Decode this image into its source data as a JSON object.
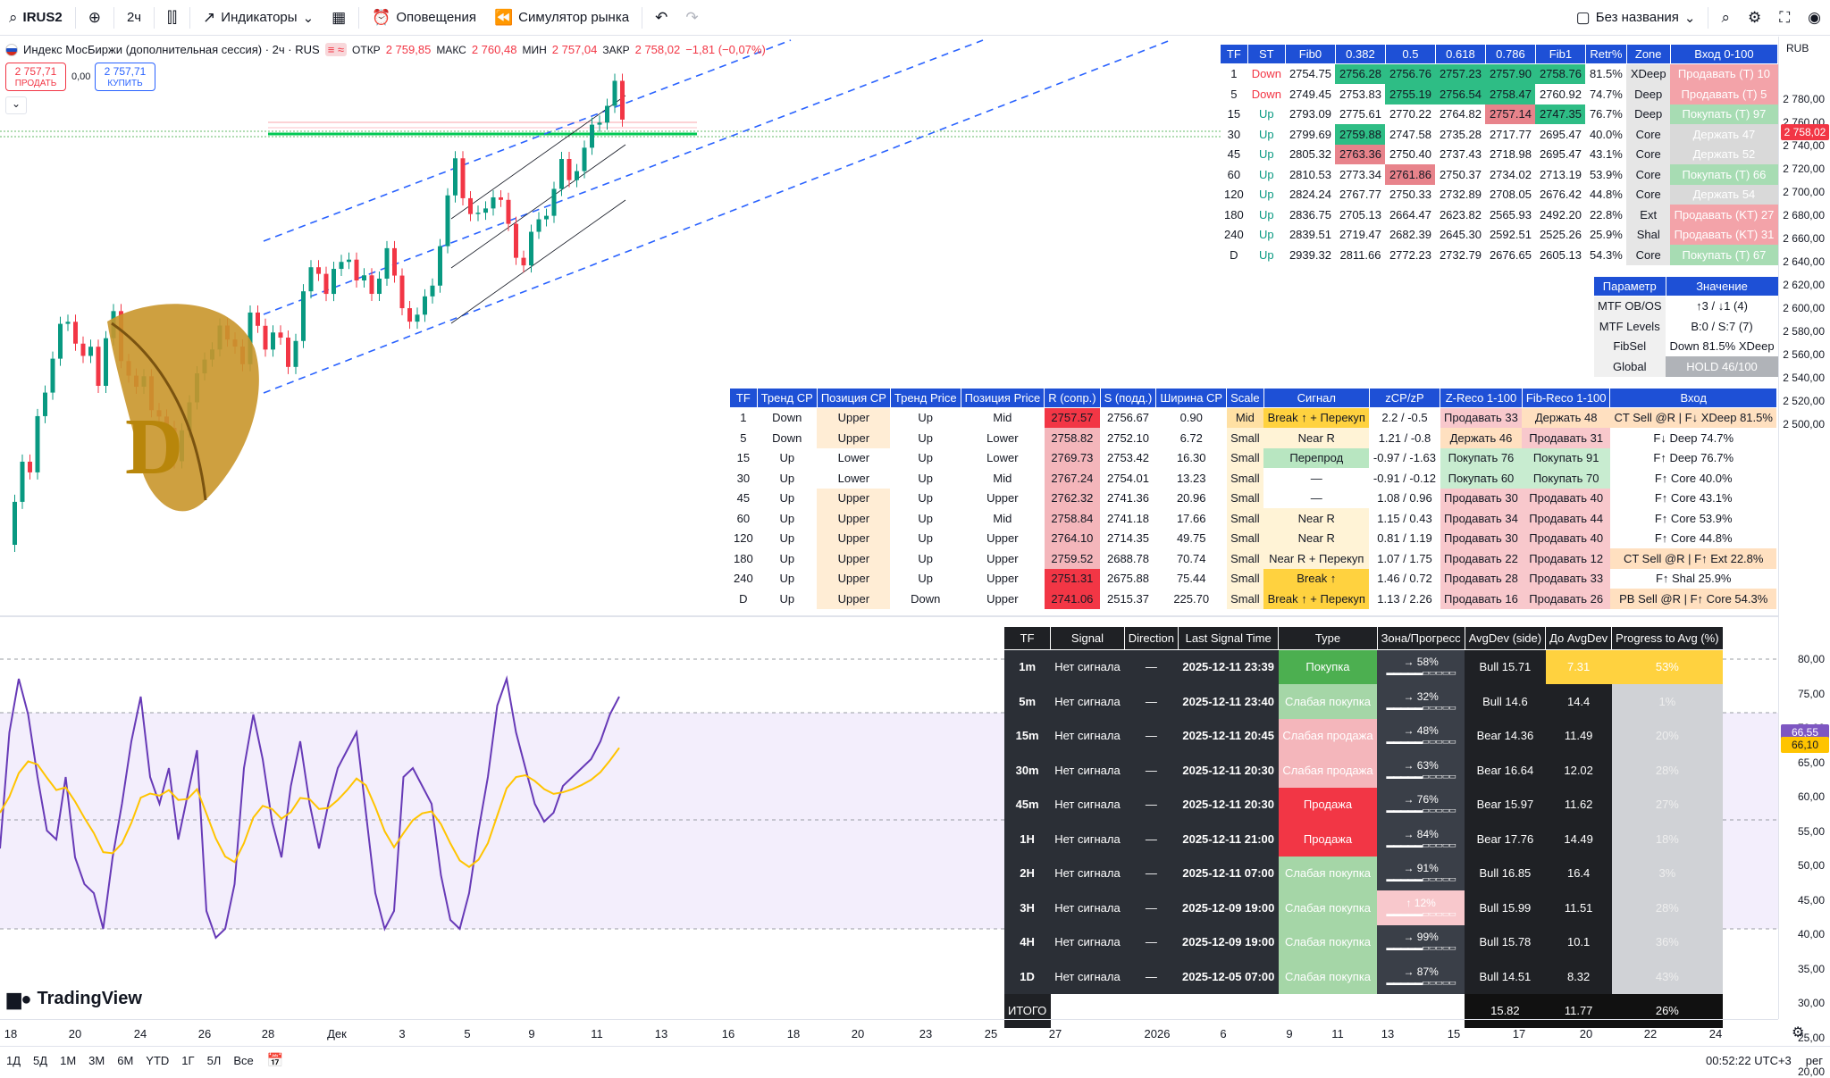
{
  "toolbar": {
    "symbol": "IRUS2",
    "interval": "2ч",
    "indicators": "Индикаторы",
    "alerts": "Оповещения",
    "replay": "Симулятор рынка",
    "layout_name": "Без названия"
  },
  "legend": {
    "title": "Индекс МосБиржи (дополнительная сессия) · 2ч · RUS",
    "o_label": "ОТКР",
    "o": "2 759,85",
    "h_label": "МАКС",
    "h": "2 760,48",
    "l_label": "МИН",
    "l": "2 757,04",
    "c_label": "ЗАКР",
    "c": "2 758,02",
    "chg": "−1,81 (−0,07%)",
    "sell_price": "2 757,71",
    "sell_label": "ПРОДАТЬ",
    "spread": "0,00",
    "buy_price": "2 757,71",
    "buy_label": "КУПИТЬ"
  },
  "currency": "RUB",
  "price_labels": [
    "2 780,00",
    "2 760,00",
    "2 740,00",
    "2 720,00",
    "2 700,00",
    "2 680,00",
    "2 660,00",
    "2 640,00",
    "2 620,00",
    "2 600,00",
    "2 580,00",
    "2 560,00",
    "2 540,00",
    "2 520,00",
    "2 500,00"
  ],
  "price_tag": "2 758,02",
  "osc_labels": [
    "80,00",
    "75,00",
    "70,00",
    "65,00",
    "60,00",
    "55,00",
    "50,00",
    "45,00",
    "40,00",
    "35,00",
    "30,00",
    "25,00",
    "20,00"
  ],
  "osc_tag1": "66,55",
  "osc_tag2": "66,10",
  "fib_table": {
    "headers": [
      "TF",
      "ST",
      "Fib0",
      "0.382",
      "0.5",
      "0.618",
      "0.786",
      "Fib1",
      "Retr%",
      "Zone",
      "Вход 0-100"
    ],
    "rows": [
      [
        "1",
        "Down",
        "2754.75",
        "2756.28",
        "2756.76",
        "2757.23",
        "2757.90",
        "2758.76",
        "81.5%",
        "XDeep",
        "Продавать (T) 10"
      ],
      [
        "5",
        "Down",
        "2749.45",
        "2753.83",
        "2755.19",
        "2756.54",
        "2758.47",
        "2760.92",
        "74.7%",
        "Deep",
        "Продавать (T) 5"
      ],
      [
        "15",
        "Up",
        "2793.09",
        "2775.61",
        "2770.22",
        "2764.82",
        "2757.14",
        "2747.35",
        "76.7%",
        "Deep",
        "Покупать (T) 97"
      ],
      [
        "30",
        "Up",
        "2799.69",
        "2759.88",
        "2747.58",
        "2735.28",
        "2717.77",
        "2695.47",
        "40.0%",
        "Core",
        "Держать 47"
      ],
      [
        "45",
        "Up",
        "2805.32",
        "2763.36",
        "2750.40",
        "2737.43",
        "2718.98",
        "2695.47",
        "43.1%",
        "Core",
        "Держать 52"
      ],
      [
        "60",
        "Up",
        "2810.53",
        "2773.34",
        "2761.86",
        "2750.37",
        "2734.02",
        "2713.19",
        "53.9%",
        "Core",
        "Покупать (T) 66"
      ],
      [
        "120",
        "Up",
        "2824.24",
        "2767.77",
        "2750.33",
        "2732.89",
        "2708.05",
        "2676.42",
        "44.8%",
        "Core",
        "Держать 54"
      ],
      [
        "180",
        "Up",
        "2836.75",
        "2705.13",
        "2664.47",
        "2623.82",
        "2565.93",
        "2492.20",
        "22.8%",
        "Ext",
        "Продавать (KT) 27"
      ],
      [
        "240",
        "Up",
        "2839.51",
        "2719.47",
        "2682.39",
        "2645.30",
        "2592.51",
        "2525.26",
        "25.9%",
        "Shal",
        "Продавать (KT) 31"
      ],
      [
        "D",
        "Up",
        "2939.32",
        "2811.66",
        "2772.23",
        "2732.79",
        "2676.65",
        "2605.13",
        "54.3%",
        "Core",
        "Покупать (T) 67"
      ]
    ]
  },
  "param_table": {
    "headers": [
      "Параметр",
      "Значение"
    ],
    "rows": [
      [
        "MTF OB/OS",
        "↑3 / ↓1 (4)"
      ],
      [
        "MTF Levels",
        "B:0 / S:7 (7)"
      ],
      [
        "FibSel",
        "Down 81.5% XDeep"
      ],
      [
        "Global",
        "HOLD 46/100"
      ]
    ]
  },
  "trend_table": {
    "headers": [
      "TF",
      "Тренд CP",
      "Позиция CP",
      "Тренд Price",
      "Позиция Price",
      "R (сопр.)",
      "S (подд.)",
      "Ширина CP",
      "Scale",
      "Сигнал",
      "zCP/zP",
      "Z-Reco 1-100",
      "Fib-Reco 1-100",
      "Вход"
    ],
    "rows": [
      [
        "1",
        "Down",
        "Upper",
        "Up",
        "Mid",
        "2757.57",
        "2756.67",
        "0.90",
        "Mid",
        "Break ↑ + Перекуп",
        "2.2 / -0.5",
        "Продавать 33",
        "Держать 48",
        "CT Sell @R | F↓ XDeep 81.5%"
      ],
      [
        "5",
        "Down",
        "Upper",
        "Up",
        "Lower",
        "2758.82",
        "2752.10",
        "6.72",
        "Small",
        "Near R",
        "1.21 / -0.8",
        "Держать 46",
        "Продавать 31",
        "F↓ Deep 74.7%"
      ],
      [
        "15",
        "Up",
        "Lower",
        "Up",
        "Lower",
        "2769.73",
        "2753.42",
        "16.30",
        "Small",
        "Перепрод",
        "-0.97 / -1.63",
        "Покупать 76",
        "Покупать 91",
        "F↑ Deep 76.7%"
      ],
      [
        "30",
        "Up",
        "Lower",
        "Up",
        "Mid",
        "2767.24",
        "2754.01",
        "13.23",
        "Small",
        "—",
        "-0.91 / -0.12",
        "Покупать 60",
        "Покупать 70",
        "F↑ Core 40.0%"
      ],
      [
        "45",
        "Up",
        "Upper",
        "Up",
        "Upper",
        "2762.32",
        "2741.36",
        "20.96",
        "Small",
        "—",
        "1.08 / 0.96",
        "Продавать 30",
        "Продавать 40",
        "F↑ Core 43.1%"
      ],
      [
        "60",
        "Up",
        "Upper",
        "Up",
        "Mid",
        "2758.84",
        "2741.18",
        "17.66",
        "Small",
        "Near R",
        "1.15 / 0.43",
        "Продавать 34",
        "Продавать 44",
        "F↑ Core 53.9%"
      ],
      [
        "120",
        "Up",
        "Upper",
        "Up",
        "Upper",
        "2764.10",
        "2714.35",
        "49.75",
        "Small",
        "Near R",
        "0.81 / 1.19",
        "Продавать 30",
        "Продавать 40",
        "F↑ Core 44.8%"
      ],
      [
        "180",
        "Up",
        "Upper",
        "Up",
        "Upper",
        "2759.52",
        "2688.78",
        "70.74",
        "Small",
        "Near R + Перекуп",
        "1.07 / 1.75",
        "Продавать 22",
        "Продавать 12",
        "CT Sell @R | F↑ Ext 22.8%"
      ],
      [
        "240",
        "Up",
        "Upper",
        "Up",
        "Upper",
        "2751.31",
        "2675.88",
        "75.44",
        "Small",
        "Break ↑",
        "1.46 / 0.72",
        "Продавать 28",
        "Продавать 33",
        "F↑ Shal 25.9%"
      ],
      [
        "D",
        "Up",
        "Upper",
        "Down",
        "Upper",
        "2741.06",
        "2515.37",
        "225.70",
        "Small",
        "Break ↑ + Перекуп",
        "1.13 / 2.26",
        "Продавать 16",
        "Продавать 26",
        "PB Sell @R | F↑ Core 54.3%"
      ]
    ]
  },
  "signal_table": {
    "headers": [
      "TF",
      "Signal",
      "Direction",
      "Last Signal Time",
      "Type",
      "Зона/Прогресс",
      "AvgDev (side)",
      "До AvgDev",
      "Progress to Avg (%)"
    ],
    "rows": [
      [
        "1m",
        "Нет сигнала",
        "—",
        "2025-12-11 23:39",
        "Покупка",
        "→ 58%",
        "Bull 15.71",
        "7.31",
        "53%"
      ],
      [
        "5m",
        "Нет сигнала",
        "—",
        "2025-12-11 23:40",
        "Слабая покупка",
        "→ 32%",
        "Bull 14.6",
        "14.4",
        "1%"
      ],
      [
        "15m",
        "Нет сигнала",
        "—",
        "2025-12-11 20:45",
        "Слабая продажа",
        "→ 48%",
        "Bear 14.36",
        "11.49",
        "20%"
      ],
      [
        "30m",
        "Нет сигнала",
        "—",
        "2025-12-11 20:30",
        "Слабая продажа",
        "→ 63%",
        "Bear 16.64",
        "12.02",
        "28%"
      ],
      [
        "45m",
        "Нет сигнала",
        "—",
        "2025-12-11 20:30",
        "Продажа",
        "→ 76%",
        "Bear 15.97",
        "11.62",
        "27%"
      ],
      [
        "1H",
        "Нет сигнала",
        "—",
        "2025-12-11 21:00",
        "Продажа",
        "→ 84%",
        "Bear 17.76",
        "14.49",
        "18%"
      ],
      [
        "2H",
        "Нет сигнала",
        "—",
        "2025-12-11 07:00",
        "Слабая покупка",
        "→ 91%",
        "Bull 16.85",
        "16.4",
        "3%"
      ],
      [
        "3H",
        "Нет сигнала",
        "—",
        "2025-12-09 19:00",
        "Слабая покупка",
        "↑ 12%",
        "Bull 15.99",
        "11.51",
        "28%"
      ],
      [
        "4H",
        "Нет сигнала",
        "—",
        "2025-12-09 19:00",
        "Слабая покупка",
        "→ 99%",
        "Bull 15.78",
        "10.1",
        "36%"
      ],
      [
        "1D",
        "Нет сигнала",
        "—",
        "2025-12-05 07:00",
        "Слабая покупка",
        "→ 87%",
        "Bull 14.51",
        "8.32",
        "43%"
      ]
    ],
    "total": {
      "label": "ИТОГО",
      "avg": "15.82",
      "to_avg": "11.77",
      "progress": "26%"
    }
  },
  "time_labels": [
    "18",
    "20",
    "24",
    "26",
    "28",
    "Дек",
    "3",
    "5",
    "9",
    "11",
    "13",
    "16",
    "18",
    "20",
    "23",
    "25",
    "27",
    "2026",
    "6",
    "9",
    "11",
    "13",
    "15",
    "17",
    "20",
    "22",
    "24"
  ],
  "ranges": [
    "1Д",
    "5Д",
    "1М",
    "3М",
    "6М",
    "YTD",
    "1Г",
    "5Л",
    "Все"
  ],
  "clock": "00:52:22 UTC+3",
  "scale_mode": "рег",
  "brand": "TradingView",
  "logo_letter": "D",
  "colors": {
    "up": "#089981",
    "down": "#f23645",
    "blue": "#2962ff",
    "header": "#1e50d6",
    "osc": "#673ab7",
    "signal": "#ffc400"
  }
}
